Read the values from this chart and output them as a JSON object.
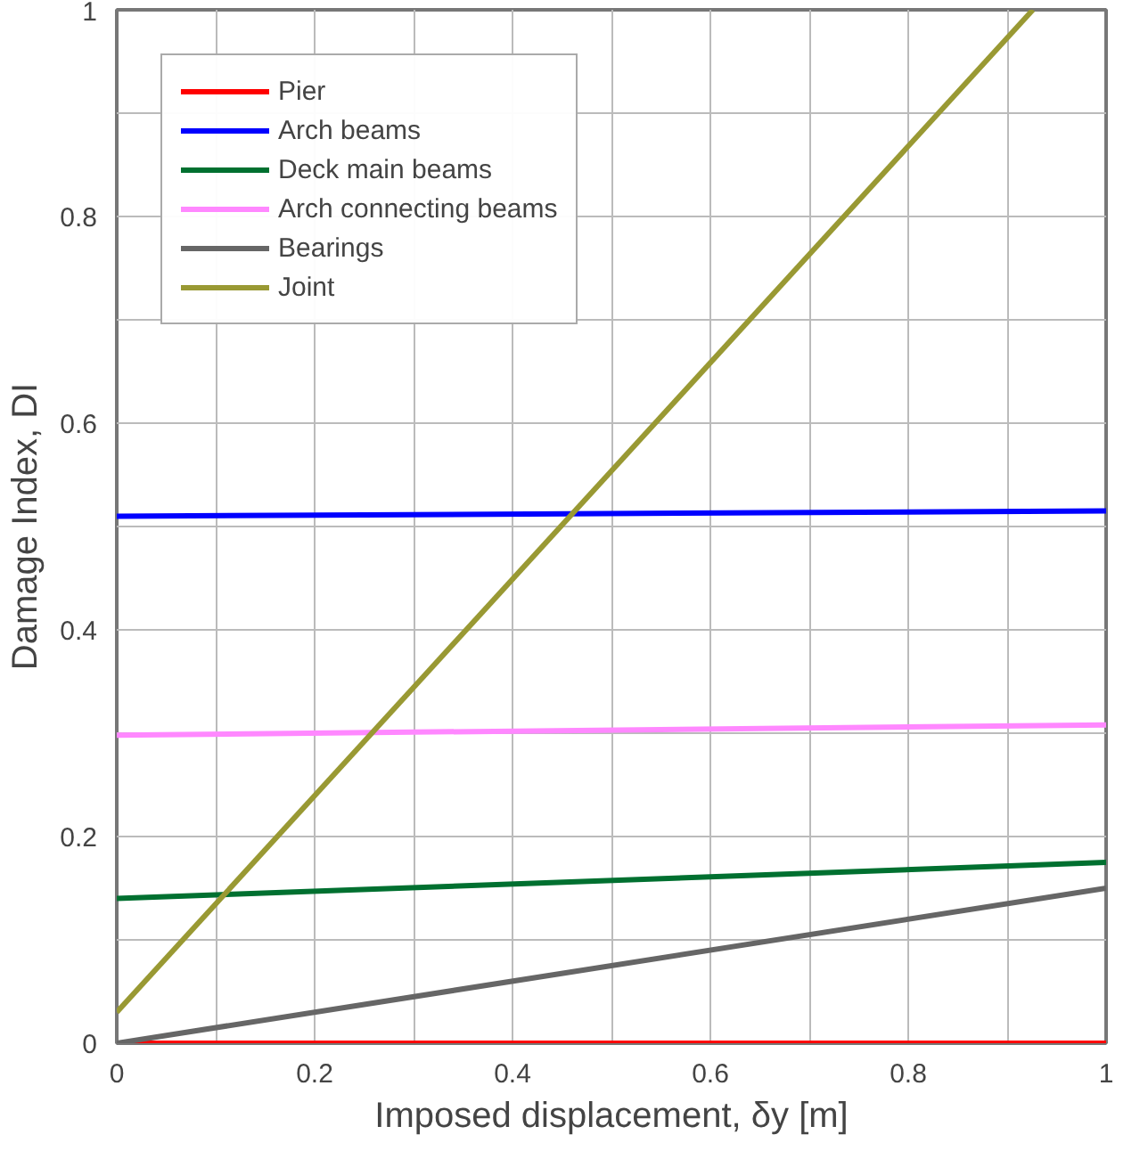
{
  "chart_data": {
    "type": "line",
    "xlabel": "Imposed displacement, δy [m]",
    "ylabel": "Damage Index, DI",
    "xlim": [
      0,
      1
    ],
    "ylim": [
      0,
      1
    ],
    "xticks": [
      0,
      {
        "value": 0.1,
        "label": null
      },
      0.2,
      {
        "value": 0.3,
        "label": null
      },
      0.4,
      {
        "value": 0.5,
        "label": null
      },
      0.6,
      {
        "value": 0.7,
        "label": null
      },
      0.8,
      {
        "value": 0.9,
        "label": null
      },
      1
    ],
    "yticks": [
      0,
      {
        "value": 0.1,
        "label": null
      },
      0.2,
      {
        "value": 0.3,
        "label": null
      },
      0.4,
      {
        "value": 0.5,
        "label": null
      },
      0.6,
      {
        "value": 0.7,
        "label": null
      },
      0.8,
      {
        "value": 0.9,
        "label": null
      },
      1
    ],
    "grid": true,
    "legend": "top left",
    "line_style": "solid",
    "marker": "none",
    "series": [
      {
        "name": "Pier",
        "color": "#ff0000",
        "x": [
          0,
          1
        ],
        "values": [
          0,
          0
        ]
      },
      {
        "name": "Arch beams",
        "color": "#0000ff",
        "x": [
          0,
          1
        ],
        "values": [
          0.51,
          0.515
        ]
      },
      {
        "name": "Deck main beams",
        "color": "#007030",
        "x": [
          0,
          1
        ],
        "values": [
          0.14,
          0.175
        ]
      },
      {
        "name": "Arch connecting beams",
        "color": "#ff88ff",
        "x": [
          0,
          1
        ],
        "values": [
          0.298,
          0.308
        ]
      },
      {
        "name": "Bearings",
        "color": "#666666",
        "x": [
          0,
          1
        ],
        "values": [
          0,
          0.15
        ]
      },
      {
        "name": "Joint",
        "color": "#999933",
        "x": [
          0,
          0.926
        ],
        "values": [
          0.03,
          1
        ]
      }
    ]
  }
}
